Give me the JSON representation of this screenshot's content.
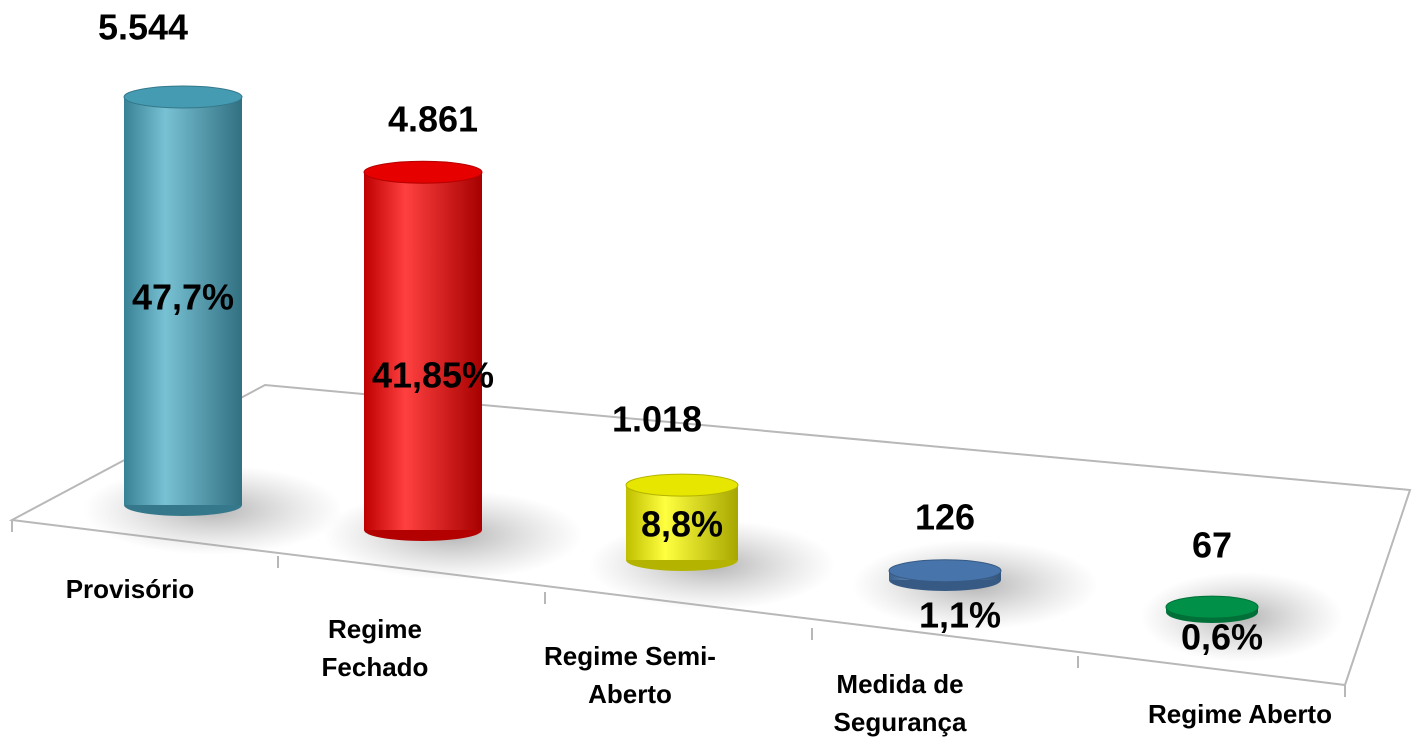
{
  "chart_data": {
    "type": "bar",
    "categories": [
      "Provisório",
      "Regime Fechado",
      "Regime Semi-Aberto",
      "Medida de Segurança",
      "Regime Aberto"
    ],
    "values": [
      5544,
      4861,
      1018,
      126,
      67
    ],
    "value_labels": [
      "5.544",
      "4.861",
      "1.018",
      "126",
      "67"
    ],
    "percents": [
      47.7,
      41.85,
      8.8,
      1.1,
      0.6
    ],
    "percent_labels": [
      "47,7%",
      "41,85%",
      "8,8%",
      "1,1%",
      "0,6%"
    ],
    "colors": [
      "#4bacc6",
      "#ff0000",
      "#ffff00",
      "#4f81bd",
      "#00a050"
    ]
  }
}
